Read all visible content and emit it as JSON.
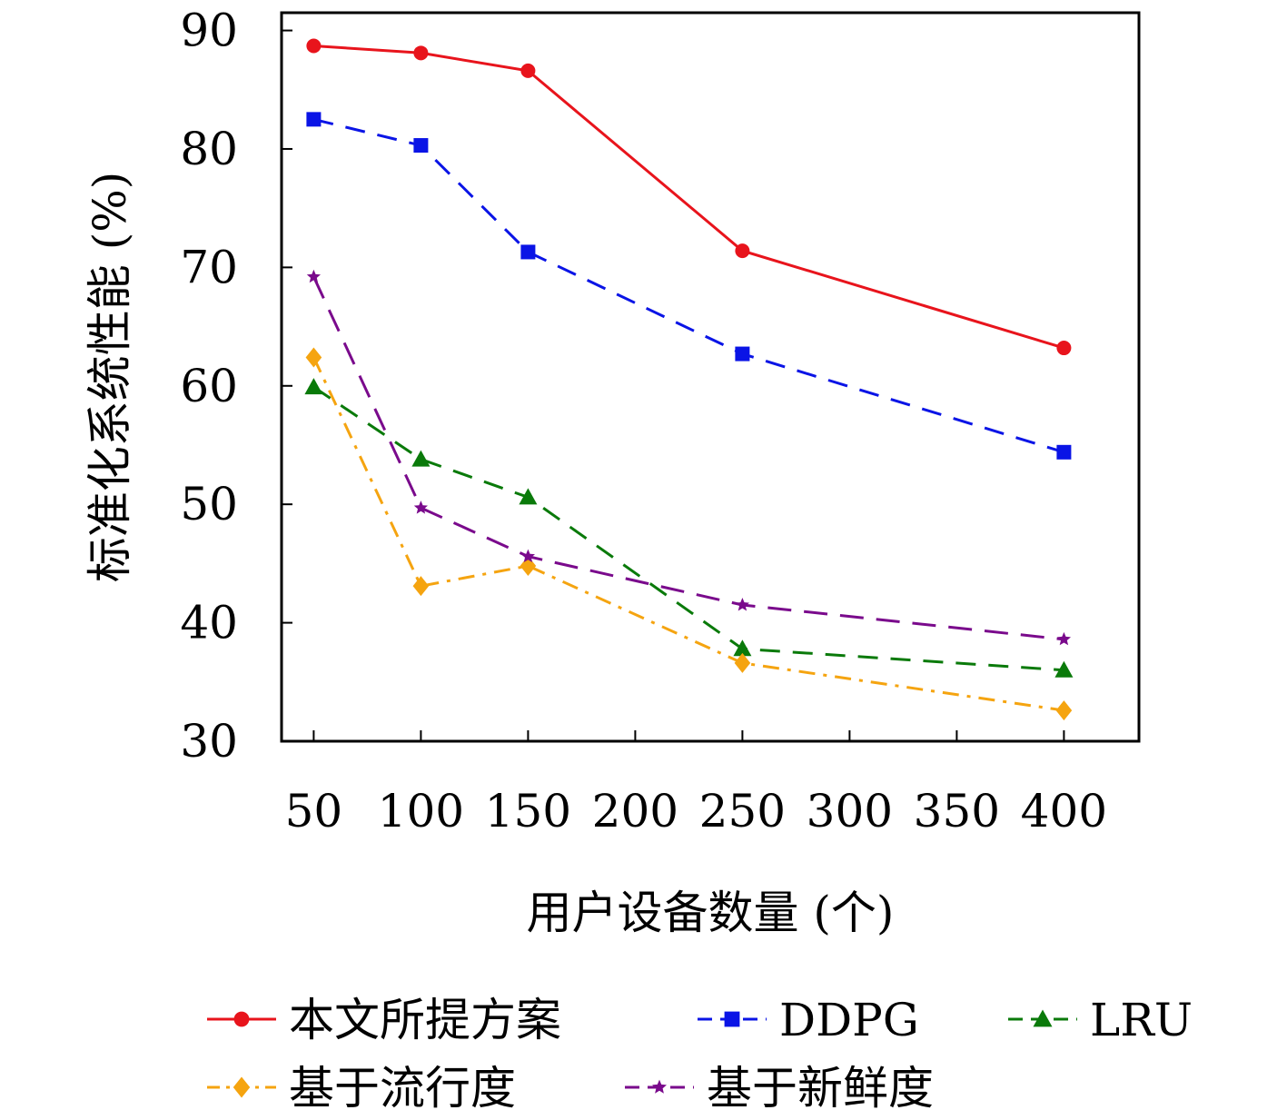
{
  "chart_data": {
    "type": "line",
    "xlabel": "用户设备数量 (个)",
    "ylabel": "标准化系统性能 (%)",
    "xlim": [
      35,
      435
    ],
    "ylim": [
      30,
      91.5
    ],
    "xticks": [
      "50",
      "100",
      "150",
      "200",
      "250",
      "300",
      "350",
      "400"
    ],
    "yticks": [
      "30",
      "40",
      "50",
      "60",
      "70",
      "80",
      "90"
    ],
    "grid": false,
    "legend": "bottom",
    "x": [
      50,
      100,
      150,
      250,
      400
    ],
    "series": [
      {
        "name": "本文所提方案",
        "color": "#e8141c",
        "dash": "solid",
        "marker": "circle",
        "values": [
          88.7,
          88.1,
          86.6,
          71.4,
          63.2
        ]
      },
      {
        "name": "DDPG",
        "color": "#0a14e6",
        "dash": "dashed",
        "marker": "square",
        "values": [
          82.5,
          80.3,
          71.3,
          62.7,
          54.4
        ]
      },
      {
        "name": "LRU",
        "color": "#0a7a0a",
        "dash": "dashed",
        "marker": "triangle",
        "values": [
          59.9,
          53.8,
          50.6,
          37.8,
          36.0
        ]
      },
      {
        "name": "基于流行度",
        "color": "#f5a410",
        "dash": "dashdot",
        "marker": "diamond",
        "values": [
          62.4,
          43.1,
          44.8,
          36.6,
          32.6
        ]
      },
      {
        "name": "基于新鲜度",
        "color": "#7a0a8c",
        "dash": "longdash",
        "marker": "star",
        "values": [
          69.2,
          49.7,
          45.6,
          41.5,
          38.6
        ]
      }
    ]
  }
}
